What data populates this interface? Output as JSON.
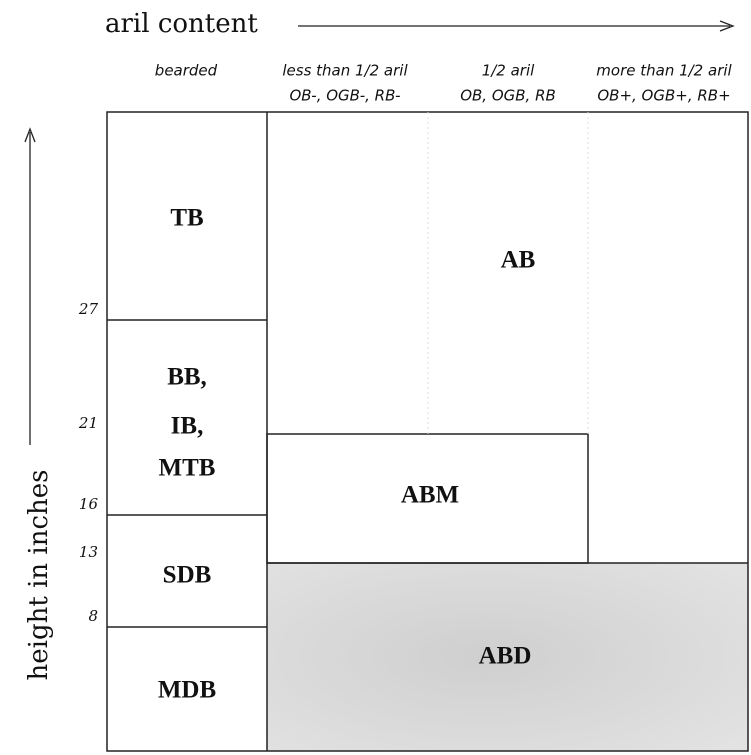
{
  "x_axis_label": "aril content",
  "y_axis_label": "height in inches",
  "columns": [
    {
      "lines": [
        "bearded"
      ]
    },
    {
      "lines": [
        "less than 1/2 aril",
        "OB-, OGB-, RB-"
      ]
    },
    {
      "lines": [
        "1/2 aril",
        "OB, OGB, RB"
      ]
    },
    {
      "lines": [
        "more than 1/2 aril",
        "OB+, OGB+, RB+"
      ]
    }
  ],
  "height_marks": [
    "27",
    "21",
    "16",
    "13",
    "8"
  ],
  "bearded_classes": [
    {
      "lines": [
        "TB"
      ]
    },
    {
      "lines": [
        "BB,",
        "IB,",
        "MTB"
      ]
    },
    {
      "lines": [
        "SDB"
      ]
    },
    {
      "lines": [
        "MDB"
      ]
    }
  ],
  "aril_classes": [
    "AB",
    "ABM",
    "ABD"
  ]
}
